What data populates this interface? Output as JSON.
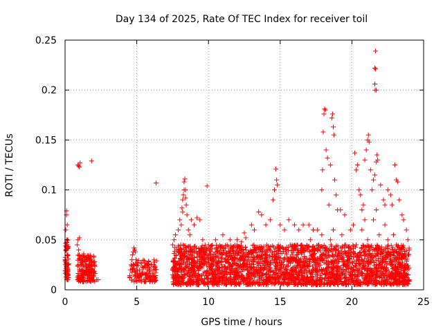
{
  "chart_data": {
    "type": "scatter",
    "title": "Day 134 of 2025, Rate Of TEC Index for receiver toil",
    "xlabel": "GPS time / hours",
    "ylabel": "ROTI / TECUs",
    "xlim": [
      0,
      25
    ],
    "ylim": [
      0,
      0.25
    ],
    "grid": true,
    "marker": "+",
    "color": "#ff0000",
    "x_ticks": [
      {
        "value": 0,
        "label": "0"
      },
      {
        "value": 5,
        "label": "5"
      },
      {
        "value": 10,
        "label": "10"
      },
      {
        "value": 15,
        "label": "15"
      },
      {
        "value": 20,
        "label": "20"
      },
      {
        "value": 25,
        "label": "25"
      }
    ],
    "y_ticks": [
      {
        "value": 0,
        "label": "0"
      },
      {
        "value": 0.05,
        "label": "0.05"
      },
      {
        "value": 0.1,
        "label": "0.1"
      },
      {
        "value": 0.15,
        "label": "0.15"
      },
      {
        "value": 0.2,
        "label": "0.2"
      },
      {
        "value": 0.25,
        "label": "0.25"
      }
    ],
    "series": [
      {
        "name": "ROTI",
        "points": [
          [
            0.0,
            0.03
          ],
          [
            0.05,
            0.06
          ],
          [
            0.1,
            0.079
          ],
          [
            0.1,
            0.075
          ],
          [
            0.12,
            0.05
          ],
          [
            0.15,
            0.045
          ],
          [
            0.18,
            0.035
          ],
          [
            0.2,
            0.02
          ],
          [
            0.22,
            0.015
          ],
          [
            0.25,
            0.012
          ],
          [
            0.08,
            0.04
          ],
          [
            0.06,
            0.025
          ],
          [
            0.15,
            0.065
          ],
          [
            0.2,
            0.01
          ],
          [
            0.9,
            0.125
          ],
          [
            0.95,
            0.124
          ],
          [
            1.0,
            0.123
          ],
          [
            1.05,
            0.127
          ],
          [
            1.85,
            0.129
          ],
          [
            0.85,
            0.045
          ],
          [
            0.9,
            0.05
          ],
          [
            0.95,
            0.04
          ],
          [
            1.0,
            0.035
          ],
          [
            1.05,
            0.03
          ],
          [
            1.1,
            0.025
          ],
          [
            1.15,
            0.02
          ],
          [
            1.2,
            0.018
          ],
          [
            1.25,
            0.015
          ],
          [
            1.3,
            0.012
          ],
          [
            1.35,
            0.03
          ],
          [
            1.4,
            0.028
          ],
          [
            1.45,
            0.022
          ],
          [
            1.5,
            0.02
          ],
          [
            1.55,
            0.016
          ],
          [
            1.6,
            0.014
          ],
          [
            1.65,
            0.026
          ],
          [
            1.7,
            0.03
          ],
          [
            1.75,
            0.024
          ],
          [
            1.8,
            0.018
          ],
          [
            1.85,
            0.012
          ],
          [
            1.9,
            0.02
          ],
          [
            1.95,
            0.015
          ],
          [
            2.0,
            0.01
          ],
          [
            1.0,
            0.052
          ],
          [
            1.1,
            0.015
          ],
          [
            1.2,
            0.03
          ],
          [
            1.3,
            0.036
          ],
          [
            1.5,
            0.025
          ],
          [
            1.6,
            0.032
          ],
          [
            1.7,
            0.01
          ],
          [
            2.2,
            0.01
          ],
          [
            2.3,
            0.01
          ],
          [
            4.5,
            0.012
          ],
          [
            4.55,
            0.02
          ],
          [
            4.6,
            0.025
          ],
          [
            4.65,
            0.03
          ],
          [
            4.7,
            0.035
          ],
          [
            4.75,
            0.038
          ],
          [
            4.8,
            0.042
          ],
          [
            4.85,
            0.04
          ],
          [
            4.9,
            0.038
          ],
          [
            4.95,
            0.03
          ],
          [
            5.0,
            0.025
          ],
          [
            5.05,
            0.015
          ],
          [
            5.1,
            0.012
          ],
          [
            5.2,
            0.02
          ],
          [
            5.3,
            0.015
          ],
          [
            5.4,
            0.018
          ],
          [
            5.5,
            0.022
          ],
          [
            5.6,
            0.016
          ],
          [
            5.7,
            0.012
          ],
          [
            5.8,
            0.014
          ],
          [
            5.9,
            0.018
          ],
          [
            6.0,
            0.01
          ],
          [
            6.1,
            0.016
          ],
          [
            6.2,
            0.014
          ],
          [
            6.3,
            0.012
          ],
          [
            6.35,
            0.107
          ],
          [
            5.35,
            0.01
          ],
          [
            5.75,
            0.02
          ],
          [
            7.5,
            0.045
          ],
          [
            7.6,
            0.05
          ],
          [
            7.7,
            0.055
          ],
          [
            7.8,
            0.04
          ],
          [
            7.9,
            0.06
          ],
          [
            8.0,
            0.07
          ],
          [
            8.1,
            0.065
          ],
          [
            8.2,
            0.078
          ],
          [
            8.25,
            0.095
          ],
          [
            8.3,
            0.108
          ],
          [
            8.35,
            0.111
          ],
          [
            8.4,
            0.1
          ],
          [
            8.45,
            0.085
          ],
          [
            8.5,
            0.075
          ],
          [
            8.6,
            0.06
          ],
          [
            8.7,
            0.055
          ],
          [
            8.8,
            0.07
          ],
          [
            9.0,
            0.065
          ],
          [
            9.2,
            0.072
          ],
          [
            9.4,
            0.07
          ],
          [
            9.6,
            0.05
          ],
          [
            9.9,
            0.104
          ],
          [
            8.2,
            0.09
          ],
          [
            8.3,
            0.1
          ],
          [
            8.4,
            0.092
          ],
          [
            8.15,
            0.082
          ],
          [
            10.0,
            0.045
          ],
          [
            10.5,
            0.05
          ],
          [
            11.0,
            0.055
          ],
          [
            11.3,
            0.045
          ],
          [
            11.5,
            0.05
          ],
          [
            12.0,
            0.05
          ],
          [
            12.3,
            0.048
          ],
          [
            12.5,
            0.057
          ],
          [
            12.6,
            0.052
          ],
          [
            13.0,
            0.065
          ],
          [
            13.2,
            0.06
          ],
          [
            13.5,
            0.078
          ],
          [
            13.7,
            0.075
          ],
          [
            14.0,
            0.065
          ],
          [
            14.3,
            0.07
          ],
          [
            14.5,
            0.09
          ],
          [
            14.6,
            0.1
          ],
          [
            14.7,
            0.121
          ],
          [
            14.75,
            0.11
          ],
          [
            14.8,
            0.105
          ],
          [
            15.0,
            0.065
          ],
          [
            15.3,
            0.06
          ],
          [
            15.6,
            0.07
          ],
          [
            16.0,
            0.065
          ],
          [
            16.3,
            0.06
          ],
          [
            16.6,
            0.065
          ],
          [
            17.0,
            0.065
          ],
          [
            17.3,
            0.06
          ],
          [
            17.6,
            0.06
          ],
          [
            17.9,
            0.1
          ],
          [
            17.95,
            0.12
          ],
          [
            18.0,
            0.158
          ],
          [
            18.05,
            0.176
          ],
          [
            18.1,
            0.181
          ],
          [
            18.15,
            0.18
          ],
          [
            18.2,
            0.14
          ],
          [
            18.3,
            0.132
          ],
          [
            18.4,
            0.085
          ],
          [
            18.5,
            0.125
          ],
          [
            18.6,
            0.172
          ],
          [
            18.65,
            0.176
          ],
          [
            18.7,
            0.163
          ],
          [
            18.75,
            0.155
          ],
          [
            18.8,
            0.11
          ],
          [
            18.9,
            0.095
          ],
          [
            19.0,
            0.08
          ],
          [
            19.2,
            0.08
          ],
          [
            19.5,
            0.075
          ],
          [
            20.2,
            0.137
          ],
          [
            20.3,
            0.12
          ],
          [
            20.4,
            0.125
          ],
          [
            20.5,
            0.1
          ],
          [
            20.6,
            0.095
          ],
          [
            20.7,
            0.08
          ],
          [
            20.8,
            0.085
          ],
          [
            20.9,
            0.13
          ],
          [
            21.0,
            0.14
          ],
          [
            21.1,
            0.15
          ],
          [
            21.15,
            0.155
          ],
          [
            21.2,
            0.148
          ],
          [
            21.3,
            0.12
          ],
          [
            21.4,
            0.1
          ],
          [
            21.5,
            0.11
          ],
          [
            21.6,
            0.115
          ],
          [
            21.7,
            0.128
          ],
          [
            21.75,
            0.135
          ],
          [
            21.8,
            0.13
          ],
          [
            21.65,
            0.239
          ],
          [
            21.6,
            0.222
          ],
          [
            21.65,
            0.221
          ],
          [
            21.6,
            0.206
          ],
          [
            21.62,
            0.2
          ],
          [
            21.7,
            0.2
          ],
          [
            22.0,
            0.105
          ],
          [
            22.2,
            0.09
          ],
          [
            22.3,
            0.085
          ],
          [
            22.5,
            0.1
          ],
          [
            22.7,
            0.095
          ],
          [
            22.8,
            0.085
          ],
          [
            23.0,
            0.125
          ],
          [
            23.1,
            0.11
          ],
          [
            23.2,
            0.108
          ],
          [
            23.3,
            0.09
          ],
          [
            23.5,
            0.075
          ],
          [
            23.6,
            0.07
          ],
          [
            23.8,
            0.06
          ],
          [
            23.9,
            0.05
          ],
          [
            24.0,
            0.04
          ],
          [
            7.5,
            0.015
          ],
          [
            7.7,
            0.012
          ],
          [
            7.9,
            0.02
          ],
          [
            8.1,
            0.025
          ],
          [
            8.3,
            0.018
          ],
          [
            8.6,
            0.022
          ],
          [
            8.9,
            0.03
          ],
          [
            9.1,
            0.014
          ],
          [
            9.3,
            0.02
          ],
          [
            9.5,
            0.025
          ],
          [
            9.7,
            0.018
          ],
          [
            9.9,
            0.012
          ],
          [
            10.1,
            0.022
          ],
          [
            10.3,
            0.03
          ],
          [
            10.5,
            0.015
          ],
          [
            10.7,
            0.02
          ],
          [
            10.9,
            0.028
          ],
          [
            11.1,
            0.012
          ],
          [
            11.3,
            0.016
          ],
          [
            11.5,
            0.025
          ],
          [
            11.7,
            0.03
          ],
          [
            11.9,
            0.02
          ],
          [
            12.1,
            0.014
          ],
          [
            12.3,
            0.022
          ],
          [
            12.5,
            0.035
          ],
          [
            12.7,
            0.025
          ],
          [
            12.9,
            0.018
          ],
          [
            13.1,
            0.03
          ],
          [
            13.3,
            0.04
          ],
          [
            13.5,
            0.02
          ],
          [
            13.7,
            0.015
          ],
          [
            13.9,
            0.028
          ],
          [
            14.1,
            0.035
          ],
          [
            14.3,
            0.022
          ],
          [
            14.5,
            0.018
          ],
          [
            14.7,
            0.03
          ],
          [
            14.9,
            0.04
          ],
          [
            15.1,
            0.025
          ],
          [
            15.3,
            0.015
          ],
          [
            15.5,
            0.032
          ],
          [
            15.7,
            0.045
          ],
          [
            15.9,
            0.02
          ],
          [
            16.1,
            0.03
          ],
          [
            16.3,
            0.038
          ],
          [
            16.5,
            0.022
          ],
          [
            16.7,
            0.016
          ],
          [
            16.9,
            0.04
          ],
          [
            17.1,
            0.05
          ],
          [
            17.3,
            0.03
          ],
          [
            17.5,
            0.02
          ],
          [
            17.7,
            0.045
          ],
          [
            17.9,
            0.055
          ],
          [
            18.1,
            0.035
          ],
          [
            18.3,
            0.025
          ],
          [
            18.5,
            0.05
          ],
          [
            18.7,
            0.06
          ],
          [
            18.9,
            0.04
          ],
          [
            19.1,
            0.028
          ],
          [
            19.3,
            0.055
          ],
          [
            19.5,
            0.045
          ],
          [
            19.7,
            0.03
          ],
          [
            19.9,
            0.06
          ],
          [
            20.1,
            0.065
          ],
          [
            20.3,
            0.045
          ],
          [
            20.5,
            0.03
          ],
          [
            20.7,
            0.06
          ],
          [
            20.9,
            0.07
          ],
          [
            21.1,
            0.05
          ],
          [
            21.3,
            0.035
          ],
          [
            21.5,
            0.07
          ],
          [
            21.7,
            0.08
          ],
          [
            21.9,
            0.055
          ],
          [
            22.1,
            0.04
          ],
          [
            22.3,
            0.065
          ],
          [
            22.5,
            0.05
          ],
          [
            22.7,
            0.03
          ],
          [
            22.9,
            0.055
          ],
          [
            23.1,
            0.045
          ],
          [
            23.3,
            0.03
          ],
          [
            23.5,
            0.04
          ],
          [
            23.7,
            0.025
          ],
          [
            23.9,
            0.015
          ],
          [
            24.0,
            0.01
          ]
        ]
      }
    ]
  }
}
